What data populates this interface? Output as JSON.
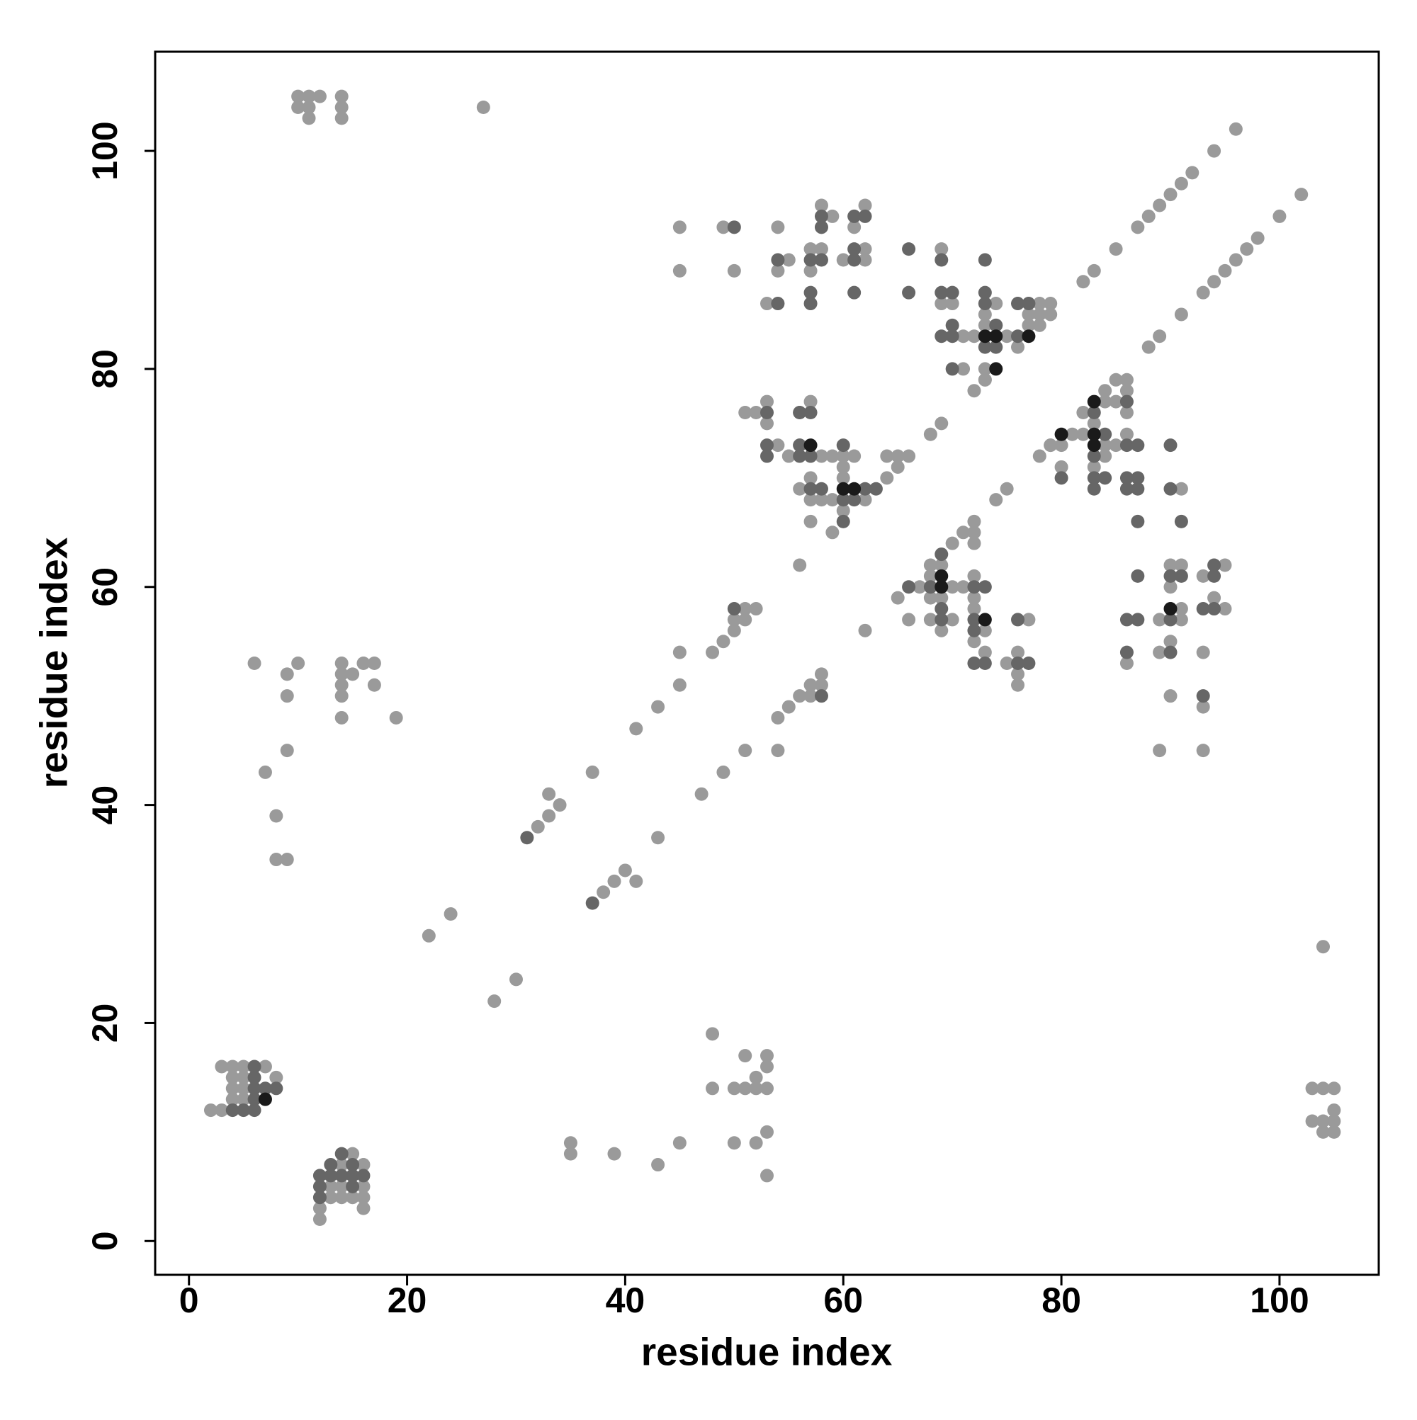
{
  "chart_data": {
    "type": "scatter",
    "xlabel": "residue index",
    "ylabel": "residue index",
    "xlim": [
      -3.1,
      109.1
    ],
    "ylim": [
      -3.1,
      109.1
    ],
    "xticks": [
      0,
      20,
      40,
      60,
      80,
      100
    ],
    "yticks": [
      0,
      20,
      40,
      60,
      80,
      100
    ],
    "series": [
      {
        "color": "#9a9a9a",
        "x": [
          10,
          11,
          12,
          14,
          10,
          11,
          14,
          11,
          14,
          27,
          22,
          24,
          32,
          33,
          33,
          34,
          37,
          41,
          43,
          45,
          45,
          48,
          49,
          50,
          50,
          51,
          51,
          52,
          56,
          62,
          28,
          30,
          38,
          39,
          40,
          41,
          43,
          47,
          49,
          51,
          54,
          54,
          55,
          56,
          57,
          57,
          58,
          58,
          68,
          69,
          72,
          73,
          82,
          83,
          85,
          87,
          88,
          89,
          90,
          91,
          92,
          94,
          96,
          65,
          74,
          75,
          78,
          79,
          88,
          89,
          91,
          93,
          94,
          95,
          96,
          97,
          98,
          100,
          102,
          70,
          71,
          72,
          72,
          72,
          6,
          10,
          9,
          9,
          9,
          7,
          8,
          8,
          9,
          14,
          14,
          15,
          14,
          14,
          16,
          17,
          17,
          14,
          19,
          2,
          3,
          3,
          4,
          5,
          7,
          4,
          5,
          8,
          4,
          5,
          4,
          5,
          12,
          12,
          13,
          14,
          15,
          16,
          13,
          14,
          16,
          16,
          15,
          16,
          14,
          35,
          35,
          39,
          43,
          45,
          48,
          48,
          50,
          51,
          51,
          52,
          52,
          53,
          53,
          53,
          50,
          52,
          53,
          53,
          103,
          104,
          105,
          103,
          104,
          105,
          105,
          104,
          105,
          104,
          45,
          45,
          49,
          50,
          54,
          54,
          55,
          53,
          57,
          57,
          58,
          58,
          59,
          60,
          61,
          62,
          62,
          62,
          51,
          52,
          53,
          53,
          54,
          55,
          56,
          56,
          57,
          57,
          57,
          57,
          58,
          59,
          58,
          59,
          59,
          60,
          60,
          60,
          60,
          61,
          62,
          64,
          65,
          65,
          64,
          66,
          56,
          69,
          69,
          70,
          71,
          72,
          71,
          73,
          73,
          74,
          74,
          73,
          73,
          75,
          76,
          77,
          77,
          78,
          78,
          78,
          79,
          79,
          68,
          69,
          68,
          69,
          68,
          67,
          70,
          71,
          66,
          68,
          70,
          69,
          72,
          72,
          72,
          72,
          73,
          73,
          75,
          76,
          76,
          76,
          77,
          79,
          80,
          80,
          81,
          82,
          82,
          83,
          84,
          84,
          85,
          85,
          85,
          84,
          86,
          86,
          86,
          86,
          83,
          84,
          89,
          89,
          89,
          90,
          90,
          90,
          90,
          91,
          91,
          91,
          93,
          93,
          93,
          93,
          94,
          95,
          95,
          86,
          91
        ],
        "values": [
          105,
          105,
          105,
          105,
          104,
          104,
          104,
          103,
          103,
          104,
          28,
          30,
          38,
          39,
          41,
          40,
          43,
          47,
          49,
          51,
          54,
          54,
          55,
          56,
          57,
          57,
          58,
          58,
          62,
          56,
          22,
          24,
          32,
          33,
          34,
          33,
          37,
          41,
          43,
          45,
          45,
          48,
          49,
          50,
          50,
          51,
          51,
          52,
          74,
          75,
          78,
          79,
          88,
          89,
          91,
          93,
          94,
          95,
          96,
          97,
          98,
          100,
          102,
          59,
          68,
          69,
          72,
          73,
          82,
          83,
          85,
          87,
          88,
          89,
          90,
          91,
          92,
          94,
          96,
          64,
          65,
          65,
          66,
          64,
          53,
          53,
          52,
          50,
          45,
          43,
          39,
          35,
          35,
          53,
          52,
          52,
          51,
          50,
          53,
          53,
          51,
          48,
          48,
          12,
          12,
          16,
          16,
          16,
          16,
          15,
          15,
          15,
          14,
          14,
          13,
          13,
          2,
          3,
          4,
          4,
          4,
          4,
          5,
          5,
          5,
          3,
          8,
          7,
          7,
          9,
          8,
          8,
          7,
          9,
          19,
          14,
          14,
          14,
          17,
          14,
          15,
          14,
          16,
          17,
          9,
          9,
          10,
          6,
          14,
          14,
          14,
          11,
          11,
          11,
          12,
          10,
          10,
          27,
          93,
          89,
          93,
          89,
          93,
          89,
          90,
          86,
          91,
          89,
          95,
          91,
          94,
          90,
          93,
          95,
          91,
          90,
          76,
          76,
          77,
          75,
          73,
          72,
          76,
          73,
          77,
          70,
          68,
          66,
          72,
          72,
          68,
          68,
          65,
          72,
          71,
          70,
          67,
          72,
          68,
          70,
          71,
          72,
          72,
          72,
          69,
          91,
          86,
          86,
          83,
          83,
          80,
          85,
          84,
          86,
          84,
          80,
          79,
          83,
          82,
          85,
          84,
          86,
          85,
          84,
          86,
          85,
          62,
          62,
          61,
          59,
          59,
          60,
          60,
          60,
          57,
          57,
          57,
          56,
          61,
          59,
          58,
          55,
          56,
          54,
          53,
          54,
          52,
          51,
          57,
          73,
          73,
          71,
          74,
          76,
          74,
          75,
          78,
          77,
          79,
          77,
          73,
          73,
          79,
          78,
          76,
          74,
          71,
          72,
          57,
          54,
          45,
          62,
          60,
          55,
          50,
          62,
          58,
          57,
          61,
          54,
          49,
          45,
          59,
          62,
          58,
          53,
          69
        ]
      },
      {
        "color": "#666666",
        "x": [
          31,
          37,
          50,
          58,
          4,
          5,
          6,
          6,
          6,
          6,
          7,
          8,
          6,
          13,
          14,
          12,
          12,
          12,
          13,
          14,
          15,
          16,
          15,
          15,
          50,
          54,
          54,
          57,
          58,
          58,
          58,
          57,
          57,
          61,
          62,
          61,
          61,
          61,
          66,
          66,
          53,
          53,
          53,
          56,
          56,
          57,
          57,
          57,
          58,
          60,
          60,
          60,
          61,
          62,
          63,
          56,
          69,
          69,
          70,
          70,
          69,
          70,
          73,
          73,
          73,
          73,
          74,
          70,
          76,
          76,
          77,
          74,
          66,
          68,
          69,
          69,
          69,
          72,
          73,
          72,
          72,
          72,
          73,
          76,
          76,
          77,
          80,
          83,
          83,
          83,
          83,
          84,
          84,
          86,
          86,
          87,
          86,
          86,
          87,
          87,
          87,
          87,
          86,
          87,
          86,
          90,
          90,
          91,
          90,
          91,
          90,
          90,
          93,
          94,
          94,
          94,
          93
        ],
        "values": [
          37,
          31,
          58,
          50,
          12,
          12,
          12,
          16,
          15,
          14,
          14,
          14,
          13,
          7,
          8,
          4,
          5,
          6,
          6,
          6,
          6,
          6,
          7,
          5,
          93,
          90,
          86,
          90,
          90,
          94,
          93,
          87,
          86,
          94,
          94,
          91,
          90,
          87,
          91,
          87,
          76,
          73,
          72,
          72,
          76,
          76,
          72,
          69,
          69,
          73,
          68,
          66,
          68,
          69,
          69,
          73,
          90,
          87,
          87,
          84,
          83,
          83,
          90,
          87,
          86,
          82,
          82,
          80,
          83,
          86,
          86,
          84,
          60,
          60,
          63,
          58,
          57,
          60,
          60,
          57,
          56,
          53,
          53,
          57,
          53,
          53,
          70,
          76,
          72,
          70,
          69,
          74,
          70,
          77,
          73,
          73,
          70,
          69,
          70,
          69,
          66,
          61,
          57,
          57,
          54,
          69,
          73,
          66,
          61,
          61,
          57,
          54,
          58,
          58,
          62,
          61,
          50
        ]
      },
      {
        "color": "#1a1a1a",
        "x": [
          7,
          57,
          60,
          61,
          73,
          74,
          77,
          74,
          69,
          69,
          73,
          80,
          83,
          83,
          83,
          90
        ],
        "values": [
          13,
          73,
          69,
          69,
          83,
          83,
          83,
          80,
          60,
          61,
          57,
          74,
          77,
          73,
          74,
          58
        ]
      }
    ]
  }
}
